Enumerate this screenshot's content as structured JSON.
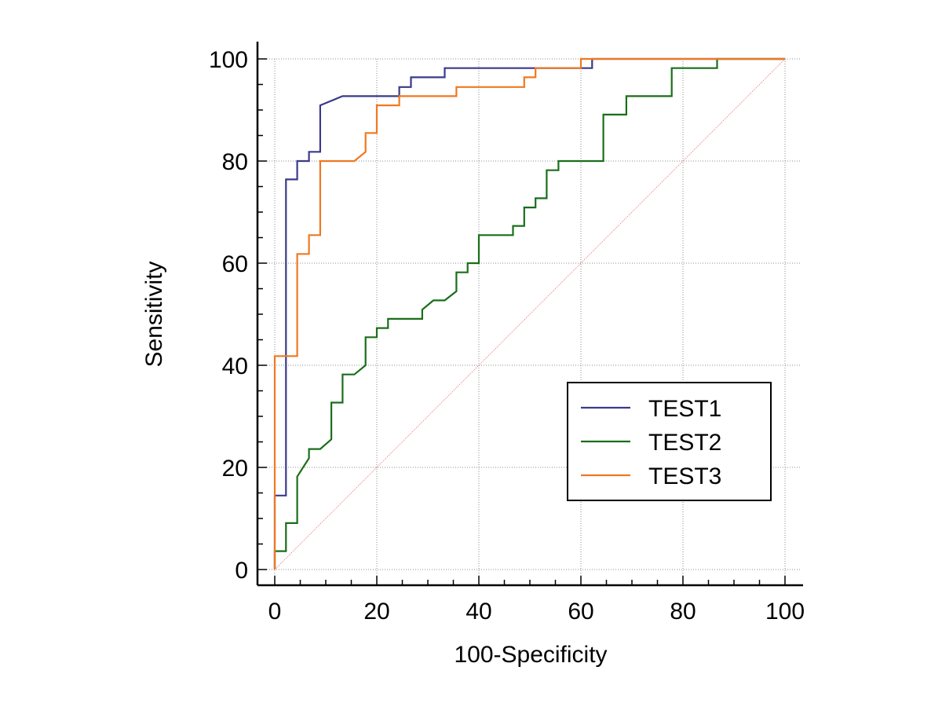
{
  "chart_data": {
    "type": "line",
    "title": "",
    "xlabel": "100-Specificity",
    "ylabel": "Sensitivity",
    "xlim": [
      0,
      100
    ],
    "ylim": [
      0,
      100
    ],
    "xticks": [
      "0",
      "20",
      "40",
      "60",
      "80",
      "100"
    ],
    "yticks": [
      "0",
      "20",
      "40",
      "60",
      "80",
      "100"
    ],
    "grid": true,
    "legend_position": "bottom-right",
    "reference_line": {
      "x": [
        0,
        100
      ],
      "y": [
        0,
        100
      ],
      "color": "#d9534f"
    },
    "series": [
      {
        "name": "TEST1",
        "color": "#3a3a8c",
        "points": [
          [
            0,
            0
          ],
          [
            0,
            14.5
          ],
          [
            2.2,
            14.5
          ],
          [
            2.2,
            76.4
          ],
          [
            4.4,
            76.4
          ],
          [
            4.4,
            80
          ],
          [
            6.7,
            80
          ],
          [
            6.7,
            81.8
          ],
          [
            8.9,
            81.8
          ],
          [
            8.9,
            90.9
          ],
          [
            13.3,
            92.7
          ],
          [
            24.4,
            92.7
          ],
          [
            24.4,
            94.5
          ],
          [
            26.7,
            94.5
          ],
          [
            26.7,
            96.4
          ],
          [
            33.3,
            96.4
          ],
          [
            33.3,
            98.2
          ],
          [
            62.2,
            98.2
          ],
          [
            62.2,
            100
          ],
          [
            100,
            100
          ]
        ]
      },
      {
        "name": "TEST2",
        "color": "#1a6e1a",
        "points": [
          [
            0,
            0
          ],
          [
            0,
            3.6
          ],
          [
            2.2,
            3.6
          ],
          [
            2.2,
            9.1
          ],
          [
            4.4,
            9.1
          ],
          [
            4.4,
            18.2
          ],
          [
            6.7,
            21.8
          ],
          [
            6.7,
            23.6
          ],
          [
            8.9,
            23.6
          ],
          [
            11.1,
            25.5
          ],
          [
            11.1,
            32.7
          ],
          [
            13.3,
            32.7
          ],
          [
            13.3,
            38.2
          ],
          [
            15.6,
            38.2
          ],
          [
            17.8,
            40
          ],
          [
            17.8,
            45.5
          ],
          [
            20,
            45.5
          ],
          [
            20,
            47.3
          ],
          [
            22.2,
            47.3
          ],
          [
            22.2,
            49.1
          ],
          [
            28.9,
            49.1
          ],
          [
            28.9,
            50.9
          ],
          [
            31.1,
            52.7
          ],
          [
            33.3,
            52.7
          ],
          [
            35.6,
            54.5
          ],
          [
            35.6,
            58.2
          ],
          [
            37.8,
            58.2
          ],
          [
            37.8,
            60
          ],
          [
            40,
            60
          ],
          [
            40,
            65.5
          ],
          [
            46.7,
            65.5
          ],
          [
            46.7,
            67.3
          ],
          [
            48.9,
            67.3
          ],
          [
            48.9,
            70.9
          ],
          [
            51.1,
            70.9
          ],
          [
            51.1,
            72.7
          ],
          [
            53.3,
            72.7
          ],
          [
            53.3,
            78.2
          ],
          [
            55.6,
            78.2
          ],
          [
            55.6,
            80
          ],
          [
            64.4,
            80
          ],
          [
            64.4,
            89.1
          ],
          [
            68.9,
            89.1
          ],
          [
            68.9,
            92.7
          ],
          [
            77.8,
            92.7
          ],
          [
            77.8,
            98.2
          ],
          [
            86.7,
            98.2
          ],
          [
            86.7,
            100
          ],
          [
            100,
            100
          ]
        ]
      },
      {
        "name": "TEST3",
        "color": "#f07820",
        "points": [
          [
            0,
            0
          ],
          [
            0,
            41.8
          ],
          [
            4.4,
            41.8
          ],
          [
            4.4,
            61.8
          ],
          [
            6.7,
            61.8
          ],
          [
            6.7,
            65.5
          ],
          [
            8.9,
            65.5
          ],
          [
            8.9,
            80
          ],
          [
            15.6,
            80
          ],
          [
            17.8,
            81.8
          ],
          [
            17.8,
            85.5
          ],
          [
            20,
            85.5
          ],
          [
            20,
            90.9
          ],
          [
            24.4,
            90.9
          ],
          [
            24.4,
            92.7
          ],
          [
            35.6,
            92.7
          ],
          [
            35.6,
            94.5
          ],
          [
            48.9,
            94.5
          ],
          [
            48.9,
            96.4
          ],
          [
            51.1,
            96.4
          ],
          [
            51.1,
            98.2
          ],
          [
            60,
            98.2
          ],
          [
            60,
            100
          ],
          [
            100,
            100
          ]
        ]
      }
    ]
  }
}
